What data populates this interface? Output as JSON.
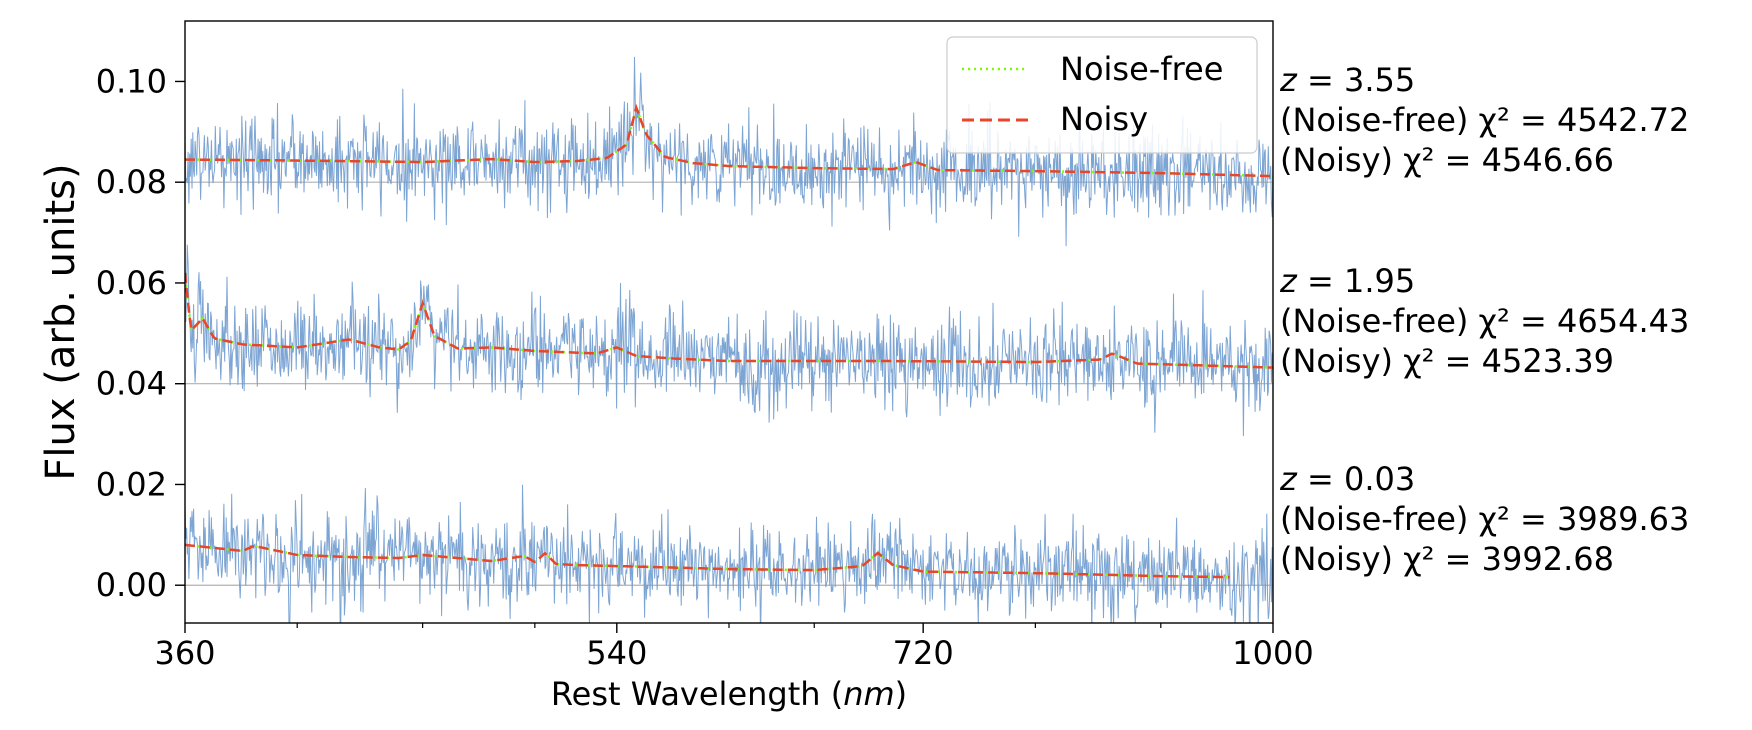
{
  "chart_data": {
    "type": "line",
    "title": "",
    "xlabel": "Rest Wavelength (nm)",
    "xlabel_parts": {
      "prefix": "Rest Wavelength (",
      "italic": "nm",
      "suffix": ")"
    },
    "ylabel": "Flux (arb. units)",
    "xlim": [
      360,
      1000
    ],
    "ylim": [
      -0.0075,
      0.112
    ],
    "xscale": "log",
    "xticks": [
      360,
      540,
      720,
      1000
    ],
    "xtick_labels": [
      "360",
      "540",
      "720",
      "1000"
    ],
    "x_minor_ticks": [
      400,
      450,
      500,
      600,
      650,
      800,
      900
    ],
    "yticks": [
      0.0,
      0.02,
      0.04,
      0.06,
      0.08,
      0.1
    ],
    "ytick_labels": [
      "0.00",
      "0.02",
      "0.04",
      "0.06",
      "0.08",
      "0.10"
    ],
    "grid": false,
    "legend": {
      "placement": "top-right",
      "entries": [
        {
          "name": "Noise-free",
          "color": "#7cfc00",
          "style": "dotted"
        },
        {
          "name": "Noisy",
          "color": "#e8452c",
          "style": "dashed"
        }
      ]
    },
    "colors": {
      "observed": "#6f9bcf",
      "noise_free": "#7cfc00",
      "noisy": "#e8452c",
      "baseline": "#b0b0b0"
    },
    "noise_sigma": 0.0045,
    "spectra": [
      {
        "offset": 0.08,
        "z_value": "3.55",
        "annotation": {
          "z": "z = 3.55",
          "noise_free": "(Noise-free) χ² = 4542.72",
          "noisy": "(Noisy) χ² = 4546.66"
        },
        "model": {
          "x": [
            360,
            400,
            450,
            480,
            500,
            520,
            535,
            545,
            550,
            555,
            565,
            580,
            600,
            650,
            700,
            715,
            730,
            800,
            900,
            1000
          ],
          "y": [
            0.0845,
            0.0843,
            0.084,
            0.0846,
            0.084,
            0.0842,
            0.0848,
            0.0875,
            0.0948,
            0.0895,
            0.085,
            0.0838,
            0.0832,
            0.0828,
            0.0826,
            0.084,
            0.0824,
            0.0822,
            0.0818,
            0.0812
          ]
        }
      },
      {
        "offset": 0.04,
        "z_value": "1.95",
        "annotation": {
          "z": "z = 1.95",
          "noise_free": "(Noise-free) χ² = 4654.43",
          "noisy": "(Noisy) χ² = 4523.39"
        },
        "model": {
          "x": [
            360,
            362,
            366,
            370,
            380,
            400,
            420,
            432,
            440,
            445,
            450,
            455,
            465,
            480,
            500,
            530,
            540,
            550,
            570,
            600,
            700,
            800,
            850,
            860,
            880,
            1000
          ],
          "y": [
            0.062,
            0.0505,
            0.053,
            0.049,
            0.0478,
            0.0472,
            0.0488,
            0.0472,
            0.0468,
            0.0485,
            0.056,
            0.0495,
            0.047,
            0.0472,
            0.0465,
            0.046,
            0.0472,
            0.0455,
            0.045,
            0.0445,
            0.0445,
            0.0443,
            0.0448,
            0.046,
            0.044,
            0.0432
          ]
        }
      },
      {
        "offset": 0.0,
        "z_value": "0.03",
        "annotation": {
          "z": "z = 0.03",
          "noise_free": "(Noise-free) χ² = 3989.63",
          "noisy": "(Noisy) χ² = 3992.68"
        },
        "model": {
          "x": [
            360,
            380,
            384,
            400,
            420,
            440,
            450,
            480,
            495,
            500,
            505,
            510,
            520,
            560,
            600,
            650,
            680,
            690,
            700,
            720,
            800,
            900,
            960
          ],
          "y": [
            0.008,
            0.0068,
            0.0078,
            0.006,
            0.0056,
            0.0054,
            0.006,
            0.0048,
            0.0058,
            0.0046,
            0.0064,
            0.0042,
            0.004,
            0.0036,
            0.0032,
            0.003,
            0.0038,
            0.0064,
            0.004,
            0.0027,
            0.0024,
            0.0018,
            0.0016
          ]
        }
      }
    ]
  }
}
